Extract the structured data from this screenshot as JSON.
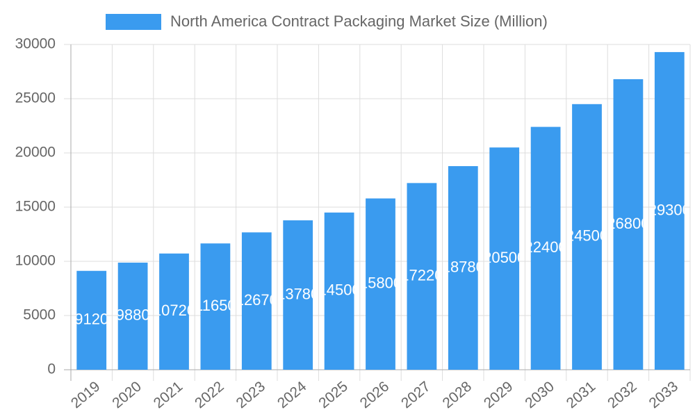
{
  "chart_data": {
    "type": "bar",
    "categories": [
      "2019",
      "2020",
      "2021",
      "2022",
      "2023",
      "2024",
      "2025",
      "2026",
      "2027",
      "2028",
      "2029",
      "2030",
      "2031",
      "2032",
      "2033"
    ],
    "series": [
      {
        "name": "North America Contract Packaging Market Size (Million)",
        "color": "#3a9bef",
        "values": [
          9120,
          9880,
          10720,
          11650,
          12670,
          13780,
          14500,
          15800,
          17220,
          18780,
          20500,
          22400,
          24500,
          26800,
          29300
        ]
      }
    ],
    "ylim": [
      0,
      30000
    ],
    "yticks": [
      0,
      5000,
      10000,
      15000,
      20000,
      25000,
      30000
    ],
    "grid": true,
    "legend": "top"
  }
}
